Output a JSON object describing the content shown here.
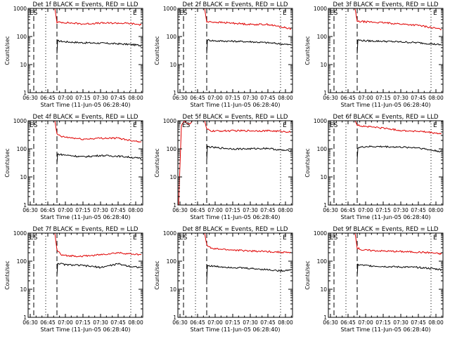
{
  "figure": {
    "time_label": "Start Time (11-Jun-05 06:28:40)",
    "ylabel": "Counts/sec",
    "x_ticks": [
      "06:30",
      "06:45",
      "07:00",
      "07:15",
      "07:30",
      "07:45",
      "08:00"
    ],
    "y_ticks": [
      "1",
      "10",
      "100",
      "1000"
    ],
    "colors": {
      "events": "#000000",
      "lld": "#e00000",
      "axis": "#000000"
    }
  },
  "chart_data": [
    {
      "type": "line",
      "title": "Det 1f BLACK = Events, RED = LLD",
      "xlabel": "Start Time (11-Jun-05 06:28:40)",
      "ylabel": "Counts/sec",
      "xlim": [
        6.47,
        8.1
      ],
      "ylim": [
        1,
        1000
      ],
      "yscale": "log",
      "markers": [
        {
          "label": "ES",
          "x": 6.48
        },
        {
          "label": "E",
          "x": 7.93
        }
      ],
      "vlines": [
        {
          "x": 6.55,
          "style": "dashed"
        },
        {
          "x": 6.72,
          "style": "dotted"
        },
        {
          "x": 6.88,
          "style": "dashed"
        },
        {
          "x": 7.93,
          "style": "dotted"
        }
      ],
      "series": [
        {
          "name": "Events",
          "color": "black",
          "x": [
            6.88,
            6.89,
            7.0,
            7.25,
            7.5,
            7.75,
            7.93,
            8.08
          ],
          "y": [
            25,
            70,
            65,
            60,
            58,
            55,
            52,
            48
          ]
        },
        {
          "name": "LLD",
          "color": "red",
          "x": [
            6.48,
            6.85,
            6.88,
            6.95,
            7.25,
            7.5,
            7.75,
            7.93,
            8.08
          ],
          "y": [
            1000,
            1000,
            320,
            320,
            280,
            300,
            300,
            290,
            260
          ]
        }
      ]
    },
    {
      "type": "line",
      "title": "Det 2f BLACK = Events, RED = LLD",
      "xlabel": "Start Time (11-Jun-05 06:28:40)",
      "ylabel": "Counts/sec",
      "xlim": [
        6.47,
        8.1
      ],
      "ylim": [
        1,
        1000
      ],
      "yscale": "log",
      "markers": [
        {
          "label": "ES",
          "x": 6.48
        },
        {
          "label": "E",
          "x": 7.93
        }
      ],
      "vlines": [
        {
          "x": 6.55,
          "style": "dashed"
        },
        {
          "x": 6.72,
          "style": "dotted"
        },
        {
          "x": 6.88,
          "style": "dashed"
        },
        {
          "x": 7.93,
          "style": "dotted"
        }
      ],
      "series": [
        {
          "name": "Events",
          "color": "black",
          "x": [
            6.88,
            6.89,
            7.0,
            7.25,
            7.5,
            7.75,
            7.93,
            8.08
          ],
          "y": [
            25,
            75,
            70,
            68,
            65,
            60,
            55,
            50
          ]
        },
        {
          "name": "LLD",
          "color": "red",
          "x": [
            6.48,
            6.85,
            6.88,
            6.95,
            7.25,
            7.5,
            7.75,
            7.93,
            8.08
          ],
          "y": [
            1000,
            1000,
            330,
            330,
            300,
            270,
            270,
            220,
            190
          ]
        }
      ]
    },
    {
      "type": "line",
      "title": "Det 3f BLACK = Events, RED = LLD",
      "xlabel": "Start Time (11-Jun-05 06:28:40)",
      "ylabel": "Counts/sec",
      "xlim": [
        6.47,
        8.1
      ],
      "ylim": [
        1,
        1000
      ],
      "yscale": "log",
      "markers": [
        {
          "label": "ES",
          "x": 6.48
        },
        {
          "label": "E",
          "x": 7.93
        }
      ],
      "vlines": [
        {
          "x": 6.55,
          "style": "dashed"
        },
        {
          "x": 6.72,
          "style": "dotted"
        },
        {
          "x": 6.88,
          "style": "dashed"
        },
        {
          "x": 7.93,
          "style": "dotted"
        }
      ],
      "series": [
        {
          "name": "Events",
          "color": "black",
          "x": [
            6.88,
            6.89,
            7.0,
            7.25,
            7.5,
            7.75,
            7.93,
            8.08
          ],
          "y": [
            25,
            75,
            70,
            68,
            64,
            60,
            55,
            50
          ]
        },
        {
          "name": "LLD",
          "color": "red",
          "x": [
            6.48,
            6.85,
            6.88,
            6.95,
            7.25,
            7.5,
            7.75,
            7.93,
            8.08
          ],
          "y": [
            1000,
            1000,
            340,
            340,
            310,
            280,
            250,
            210,
            180
          ]
        }
      ]
    },
    {
      "type": "line",
      "title": "Det 4f BLACK = Events, RED = LLD",
      "xlabel": "Start Time (11-Jun-05 06:28:40)",
      "ylabel": "Counts/sec",
      "xlim": [
        6.47,
        8.1
      ],
      "ylim": [
        1,
        1000
      ],
      "yscale": "log",
      "markers": [
        {
          "label": "ES",
          "x": 6.48
        },
        {
          "label": "E",
          "x": 7.93
        }
      ],
      "vlines": [
        {
          "x": 6.55,
          "style": "dashed"
        },
        {
          "x": 6.72,
          "style": "dotted"
        },
        {
          "x": 6.88,
          "style": "dashed"
        },
        {
          "x": 7.93,
          "style": "dotted"
        }
      ],
      "series": [
        {
          "name": "Events",
          "color": "black",
          "x": [
            6.88,
            6.89,
            7.0,
            7.25,
            7.5,
            7.75,
            7.93,
            8.08
          ],
          "y": [
            30,
            65,
            60,
            52,
            58,
            55,
            50,
            45
          ]
        },
        {
          "name": "LLD",
          "color": "red",
          "x": [
            6.48,
            6.85,
            6.88,
            6.95,
            7.25,
            7.5,
            7.75,
            7.93,
            8.08
          ],
          "y": [
            1000,
            1000,
            330,
            270,
            220,
            240,
            240,
            200,
            180
          ]
        }
      ]
    },
    {
      "type": "line",
      "title": "Det 5f BLACK = Events, RED = LLD",
      "xlabel": "Start Time (11-Jun-05 06:28:40)",
      "ylabel": "Counts/sec",
      "xlim": [
        6.47,
        8.1
      ],
      "ylim": [
        1,
        1000
      ],
      "yscale": "log",
      "markers": [
        {
          "label": "ES",
          "x": 6.52
        },
        {
          "label": "E",
          "x": 7.93
        }
      ],
      "vlines": [
        {
          "x": 6.72,
          "style": "dotted"
        },
        {
          "x": 6.88,
          "style": "dashed"
        },
        {
          "x": 7.93,
          "style": "dotted"
        }
      ],
      "series": [
        {
          "name": "Events",
          "color": "black",
          "x": [
            6.88,
            6.89,
            7.0,
            7.25,
            7.5,
            7.75,
            7.93,
            8.08
          ],
          "y": [
            40,
            120,
            110,
            100,
            100,
            105,
            90,
            85
          ]
        },
        {
          "name": "LLD",
          "color": "red",
          "x": [
            6.48,
            6.52,
            6.56,
            6.6,
            6.64,
            6.68,
            6.85,
            6.88,
            6.95,
            7.25,
            7.5,
            7.75,
            7.93,
            8.08
          ],
          "y": [
            1,
            700,
            1000,
            800,
            750,
            1000,
            1000,
            500,
            430,
            440,
            440,
            440,
            420,
            400
          ]
        }
      ]
    },
    {
      "type": "line",
      "title": "Det 6f BLACK = Events, RED = LLD",
      "xlabel": "Start Time (11-Jun-05 06:28:40)",
      "ylabel": "Counts/sec",
      "xlim": [
        6.47,
        8.1
      ],
      "ylim": [
        1,
        1000
      ],
      "yscale": "log",
      "markers": [
        {
          "label": "ES",
          "x": 6.48
        },
        {
          "label": "E",
          "x": 7.93
        }
      ],
      "vlines": [
        {
          "x": 6.55,
          "style": "dashed"
        },
        {
          "x": 6.72,
          "style": "dotted"
        },
        {
          "x": 6.88,
          "style": "dashed"
        },
        {
          "x": 7.93,
          "style": "dotted"
        }
      ],
      "series": [
        {
          "name": "Events",
          "color": "black",
          "x": [
            6.88,
            6.89,
            7.0,
            7.25,
            7.5,
            7.75,
            7.93,
            8.08
          ],
          "y": [
            40,
            110,
            120,
            120,
            115,
            110,
            90,
            80
          ]
        },
        {
          "name": "LLD",
          "color": "red",
          "x": [
            6.48,
            6.85,
            6.88,
            6.95,
            7.25,
            7.5,
            7.75,
            7.93,
            8.08
          ],
          "y": [
            1000,
            1000,
            700,
            650,
            550,
            450,
            420,
            380,
            340
          ]
        }
      ]
    },
    {
      "type": "line",
      "title": "Det 7f BLACK = Events, RED = LLD",
      "xlabel": "Start Time (11-Jun-05 06:28:40)",
      "ylabel": "Counts/sec",
      "xlim": [
        6.47,
        8.1
      ],
      "ylim": [
        1,
        1000
      ],
      "yscale": "log",
      "markers": [
        {
          "label": "ES",
          "x": 6.48
        },
        {
          "label": "E",
          "x": 7.93
        }
      ],
      "vlines": [
        {
          "x": 6.55,
          "style": "dashed"
        },
        {
          "x": 6.72,
          "style": "dotted"
        },
        {
          "x": 6.88,
          "style": "dashed"
        },
        {
          "x": 7.93,
          "style": "dotted"
        }
      ],
      "series": [
        {
          "name": "Events",
          "color": "black",
          "x": [
            6.88,
            6.89,
            7.0,
            7.25,
            7.5,
            7.75,
            7.93,
            8.08
          ],
          "y": [
            30,
            85,
            75,
            70,
            60,
            80,
            65,
            60
          ]
        },
        {
          "name": "LLD",
          "color": "red",
          "x": [
            6.48,
            6.85,
            6.88,
            6.95,
            7.25,
            7.5,
            7.75,
            7.93,
            8.08
          ],
          "y": [
            1000,
            1000,
            250,
            160,
            150,
            170,
            200,
            180,
            170
          ]
        }
      ]
    },
    {
      "type": "line",
      "title": "Det 8f BLACK = Events, RED = LLD",
      "xlabel": "Start Time (11-Jun-05 06:28:40)",
      "ylabel": "Counts/sec",
      "xlim": [
        6.47,
        8.1
      ],
      "ylim": [
        1,
        1000
      ],
      "yscale": "log",
      "markers": [
        {
          "label": "ES",
          "x": 6.48
        },
        {
          "label": "E",
          "x": 7.93
        }
      ],
      "vlines": [
        {
          "x": 6.55,
          "style": "dashed"
        },
        {
          "x": 6.72,
          "style": "dotted"
        },
        {
          "x": 6.88,
          "style": "dashed"
        },
        {
          "x": 7.93,
          "style": "dotted"
        }
      ],
      "series": [
        {
          "name": "Events",
          "color": "black",
          "x": [
            6.88,
            6.89,
            7.0,
            7.25,
            7.5,
            7.75,
            7.93,
            8.08
          ],
          "y": [
            20,
            70,
            65,
            60,
            55,
            50,
            45,
            50
          ]
        },
        {
          "name": "LLD",
          "color": "red",
          "x": [
            6.48,
            6.85,
            6.88,
            6.95,
            7.25,
            7.5,
            7.75,
            7.93,
            8.08
          ],
          "y": [
            1000,
            1000,
            380,
            280,
            250,
            230,
            220,
            210,
            200
          ]
        }
      ]
    },
    {
      "type": "line",
      "title": "Det 9f BLACK = Events, RED = LLD",
      "xlabel": "Start Time (11-Jun-05 06:28:40)",
      "ylabel": "Counts/sec",
      "xlim": [
        6.47,
        8.1
      ],
      "ylim": [
        1,
        1000
      ],
      "yscale": "log",
      "markers": [
        {
          "label": "ES",
          "x": 6.48
        },
        {
          "label": "E",
          "x": 7.93
        }
      ],
      "vlines": [
        {
          "x": 6.55,
          "style": "dashed"
        },
        {
          "x": 6.72,
          "style": "dotted"
        },
        {
          "x": 6.88,
          "style": "dashed"
        },
        {
          "x": 7.93,
          "style": "dotted"
        }
      ],
      "series": [
        {
          "name": "Events",
          "color": "black",
          "x": [
            6.88,
            6.89,
            7.0,
            7.25,
            7.5,
            7.75,
            7.93,
            8.08
          ],
          "y": [
            30,
            75,
            70,
            65,
            62,
            60,
            55,
            50
          ]
        },
        {
          "name": "LLD",
          "color": "red",
          "x": [
            6.48,
            6.85,
            6.88,
            6.95,
            7.25,
            7.5,
            7.75,
            7.93,
            8.08
          ],
          "y": [
            1000,
            1000,
            300,
            250,
            230,
            220,
            210,
            200,
            180
          ]
        }
      ]
    }
  ]
}
